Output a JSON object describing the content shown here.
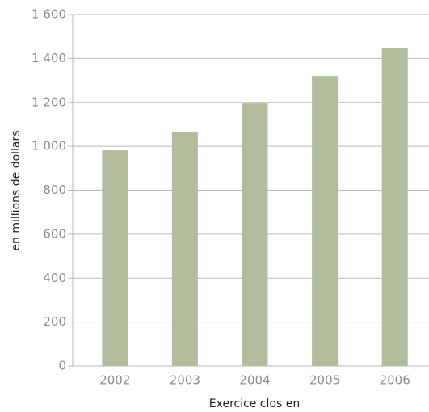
{
  "chart_data": {
    "type": "bar",
    "categories": [
      "2002",
      "2003",
      "2004",
      "2005",
      "2006"
    ],
    "values": [
      982,
      1063,
      1195,
      1320,
      1446
    ],
    "color": "#b1bd9d",
    "ylabel": "en millions de dollars",
    "xlabel": "Exercice clos en",
    "ylim": [
      0,
      1600
    ],
    "yticks": [
      0,
      200,
      400,
      600,
      800,
      {
        "value": 1000,
        "label": "1 000"
      },
      {
        "value": 1200,
        "label": "1 200"
      },
      {
        "value": 1400,
        "label": "1 400"
      },
      {
        "value": 1600,
        "label": "1 600"
      }
    ],
    "grid": true
  }
}
